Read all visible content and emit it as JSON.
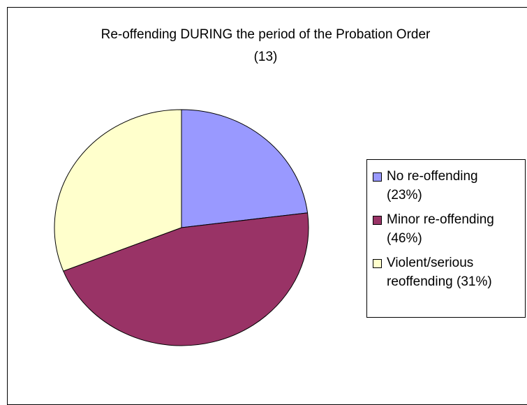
{
  "chart_data": {
    "type": "pie",
    "title": "Re-offending DURING the period of the Probation Order (13)",
    "categories": [
      "No re-offending (23%)",
      "Minor re-offending (46%)",
      "Violent/serious reoffending (31%)"
    ],
    "values": [
      23,
      46,
      31
    ],
    "colors": [
      "#9999ff",
      "#993366",
      "#ffffcc"
    ],
    "legend": "right"
  }
}
